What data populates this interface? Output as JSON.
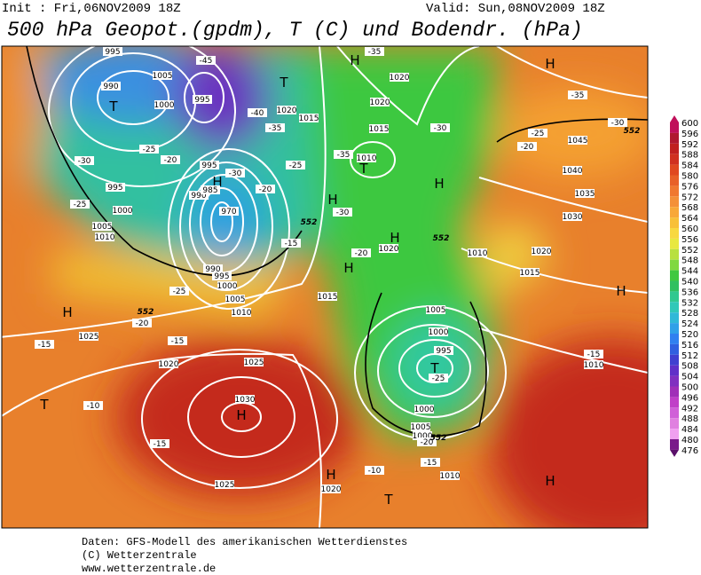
{
  "header": {
    "init": "Init : Fri,06NOV2009 18Z",
    "valid": "Valid: Sun,08NOV2009 18Z",
    "title": "500 hPa Geopot.(gpdm), T (C) und Bodendr. (hPa)"
  },
  "colorbar": {
    "labels": [
      "600",
      "596",
      "592",
      "588",
      "584",
      "580",
      "576",
      "572",
      "568",
      "564",
      "560",
      "556",
      "552",
      "548",
      "544",
      "540",
      "536",
      "532",
      "528",
      "524",
      "520",
      "516",
      "512",
      "508",
      "504",
      "500",
      "496",
      "492",
      "488",
      "484",
      "480",
      "476"
    ]
  },
  "map_labels": [
    "H",
    "H",
    "H",
    "H",
    "H",
    "H",
    "H",
    "H",
    "H",
    "H",
    "H",
    "H",
    "T",
    "T",
    "T",
    "T",
    "T",
    "T",
    "995",
    "1005",
    "990",
    "1000",
    "995",
    "1020",
    "1015",
    "1020",
    "1020",
    "1015",
    "1010",
    "995",
    "990",
    "985",
    "970",
    "1000",
    "1005",
    "1010",
    "995",
    "990",
    "995",
    "1000",
    "1005",
    "1010",
    "1015",
    "1025",
    "1020",
    "1025",
    "1030",
    "1025",
    "1020",
    "1005",
    "1000",
    "995",
    "1000",
    "1005",
    "1010",
    "1020",
    "1010",
    "1020",
    "1015",
    "1030",
    "1035",
    "1040",
    "1045",
    "1010",
    "1000",
    "-45",
    "-40",
    "-35",
    "-30",
    "-25",
    "-20",
    "-25",
    "-30",
    "-35",
    "-30",
    "-25",
    "-20",
    "-15",
    "-25",
    "-20",
    "-15",
    "-15",
    "-10",
    "-15",
    "-10",
    "-15",
    "-20",
    "-25",
    "-30",
    "-25",
    "-20",
    "-35",
    "-30",
    "-35",
    "-15",
    "-20",
    "552",
    "552",
    "552",
    "552",
    "552"
  ],
  "footer": {
    "line1": "Daten: GFS-Modell des amerikanischen Wetterdienstes",
    "line2": "(C) Wetterzentrale",
    "line3": "www.wetterzentrale.de"
  }
}
